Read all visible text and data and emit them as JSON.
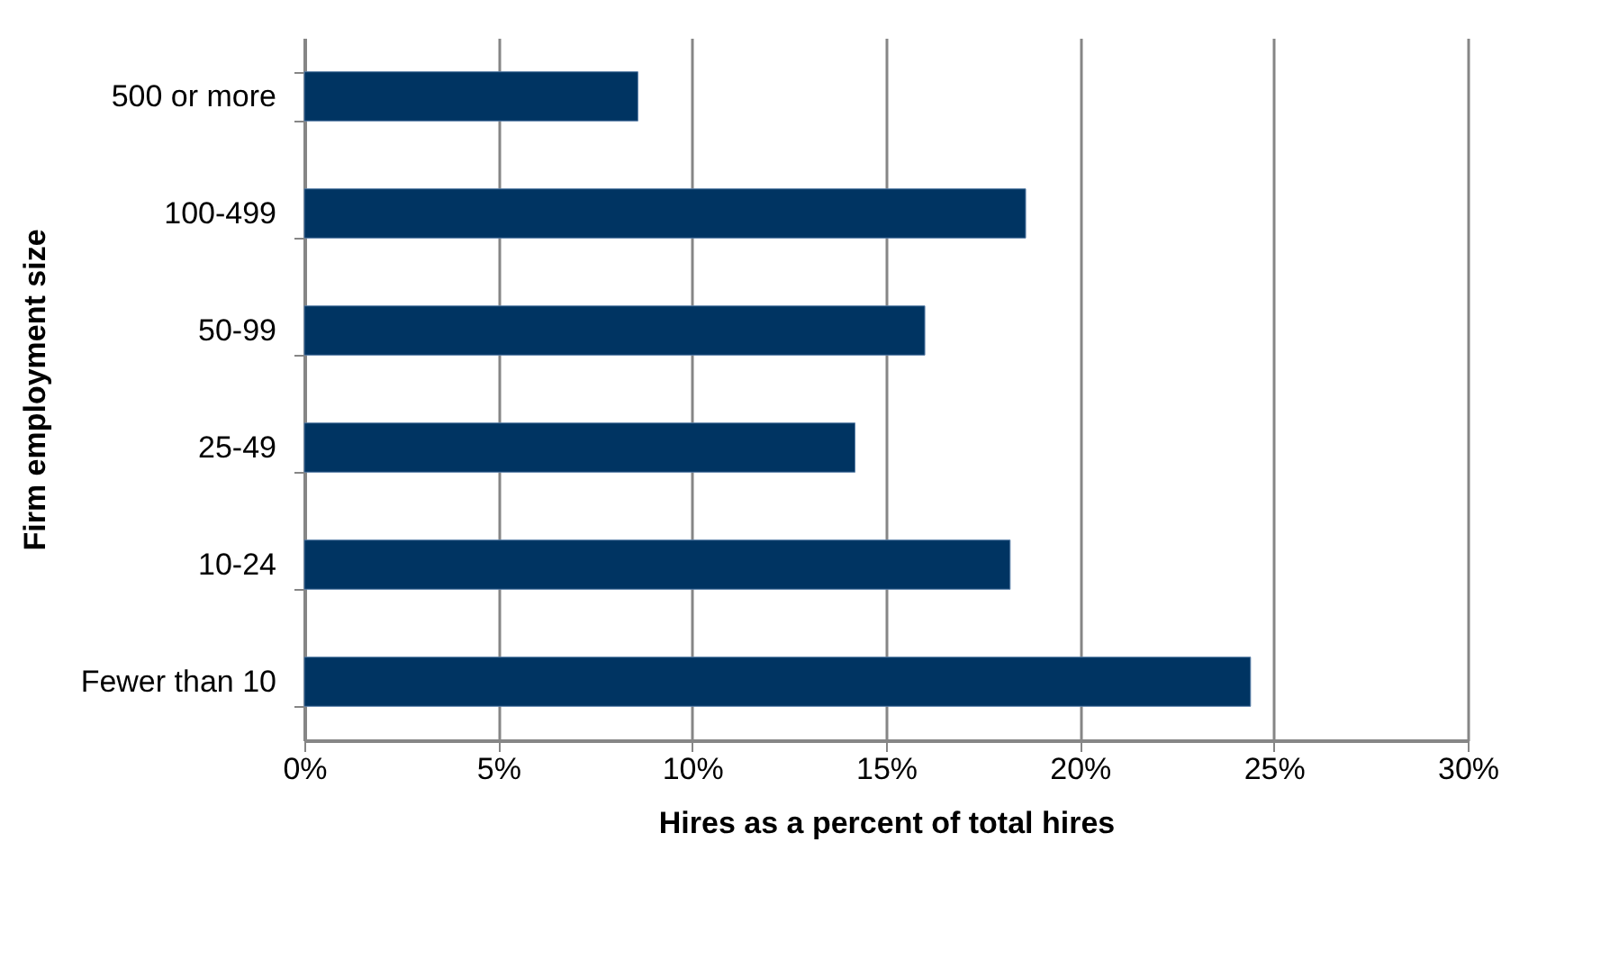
{
  "chart_data": {
    "type": "bar",
    "orientation": "horizontal",
    "xlabel": "Hires as a percent of total hires",
    "ylabel": "Firm employment size",
    "categories": [
      "500 or more",
      "100-499",
      "50-99",
      "25-49",
      "10-24",
      "Fewer than 10"
    ],
    "values": [
      8.6,
      18.6,
      16.0,
      14.2,
      18.2,
      24.4
    ],
    "color": "#003462",
    "xlim": [
      0,
      30
    ],
    "xticks": [
      {
        "value": 0,
        "label": "0%"
      },
      {
        "value": 5,
        "label": "5%"
      },
      {
        "value": 10,
        "label": "10%"
      },
      {
        "value": 15,
        "label": "15%"
      },
      {
        "value": 20,
        "label": "20%"
      },
      {
        "value": 25,
        "label": "25%"
      },
      {
        "value": 30,
        "label": "30%"
      }
    ],
    "grid": "x"
  }
}
